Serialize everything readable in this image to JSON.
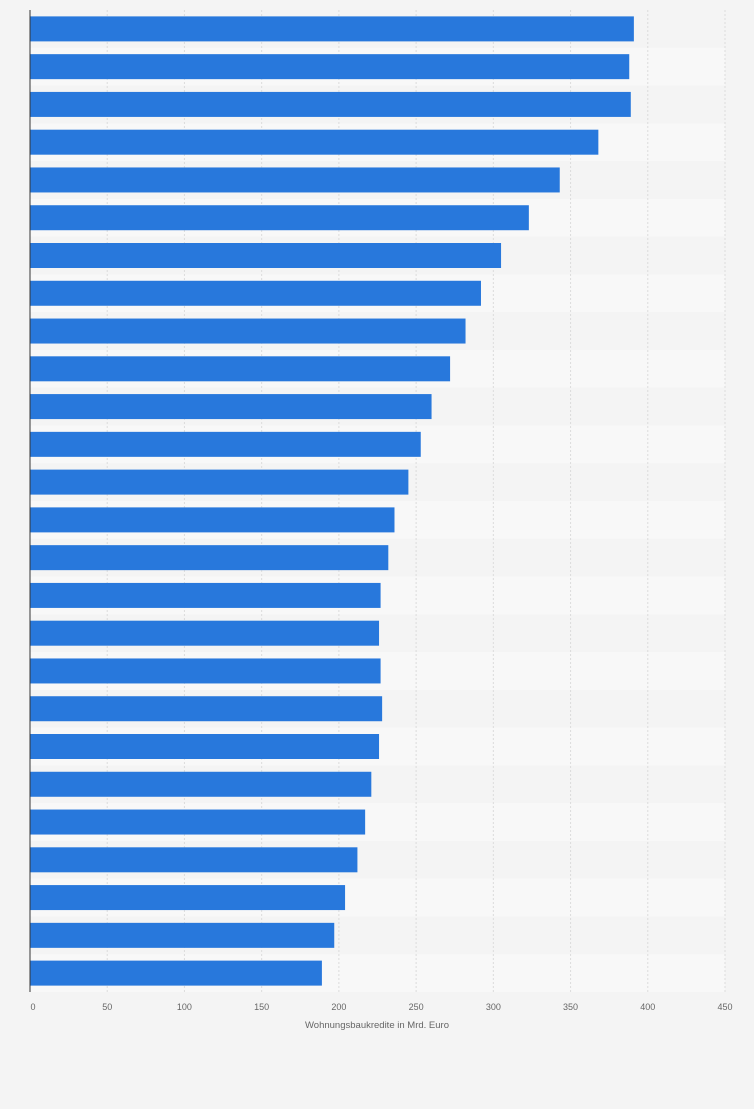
{
  "chart_data": {
    "type": "bar",
    "orientation": "horizontal",
    "xlabel": "Wohnungsbaukredite in Mrd. Euro",
    "xlim": [
      0,
      450
    ],
    "x_ticks": [
      0,
      50,
      100,
      150,
      200,
      250,
      300,
      350,
      400,
      450
    ],
    "grid": "vertical",
    "values": [
      391,
      388,
      389,
      368,
      343,
      323,
      305,
      292,
      282,
      272,
      260,
      253,
      245,
      236,
      232,
      227,
      226,
      227,
      228,
      226,
      221,
      217,
      212,
      204,
      197,
      189
    ],
    "colors": {
      "bar": "#2878dc",
      "background": "#f4f4f4",
      "band": "#f8f8f8",
      "grid": "#dcdcdc",
      "axis": "#333333"
    }
  }
}
